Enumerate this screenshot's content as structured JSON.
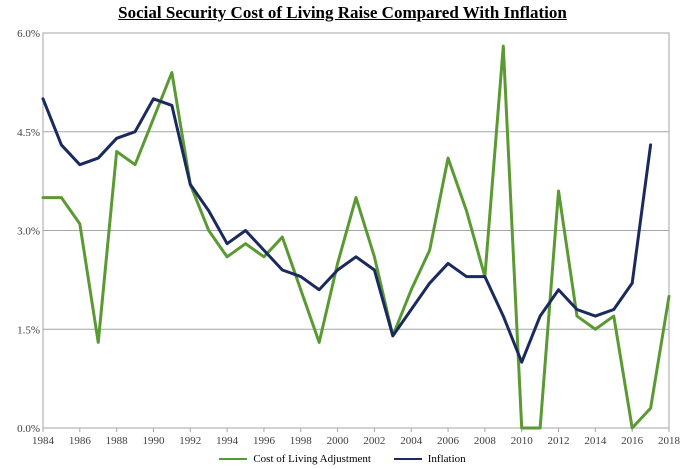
{
  "chart_data": {
    "type": "line",
    "title": "Social Security Cost of Living Raise Compared With Inflation",
    "xlabel": "",
    "ylabel": "",
    "xlim": [
      1984,
      2018
    ],
    "ylim": [
      0,
      6
    ],
    "x_ticks": [
      "1984",
      "1986",
      "1988",
      "1990",
      "1992",
      "1994",
      "1996",
      "1998",
      "2000",
      "2002",
      "2004",
      "2006",
      "2008",
      "2010",
      "2012",
      "2014",
      "2016",
      "2018"
    ],
    "y_ticks": [
      "0.0%",
      "1.5%",
      "3.0%",
      "4.5%",
      "6.0%"
    ],
    "grid": "horizontal",
    "legend_position": "bottom",
    "series": [
      {
        "name": "Cost of Living Adjustment",
        "color": "#5b9a33",
        "x": [
          1984,
          1985,
          1986,
          1987,
          1988,
          1989,
          1990,
          1991,
          1992,
          1993,
          1994,
          1995,
          1996,
          1997,
          1998,
          1999,
          2000,
          2001,
          2002,
          2003,
          2004,
          2005,
          2006,
          2007,
          2008,
          2009,
          2010,
          2011,
          2012,
          2013,
          2014,
          2015,
          2016,
          2017,
          2018
        ],
        "values": [
          3.5,
          3.5,
          3.1,
          1.3,
          4.2,
          4.0,
          4.7,
          5.4,
          3.7,
          3.0,
          2.6,
          2.8,
          2.6,
          2.9,
          2.1,
          1.3,
          2.5,
          3.5,
          2.6,
          1.4,
          2.1,
          2.7,
          4.1,
          3.3,
          2.3,
          5.8,
          0.0,
          0.0,
          3.6,
          1.7,
          1.5,
          1.7,
          0.0,
          0.3,
          2.0
        ]
      },
      {
        "name": "Inflation",
        "color": "#1b2a5e",
        "x": [
          1984,
          1985,
          1986,
          1987,
          1988,
          1989,
          1990,
          1991,
          1992,
          1993,
          1994,
          1995,
          1996,
          1997,
          1998,
          1999,
          2000,
          2001,
          2002,
          2003,
          2004,
          2005,
          2006,
          2007,
          2008,
          2009,
          2010,
          2011,
          2012,
          2013,
          2014,
          2015,
          2016,
          2017
        ],
        "values": [
          5.0,
          4.3,
          4.0,
          4.1,
          4.4,
          4.5,
          5.0,
          4.9,
          3.7,
          3.3,
          2.8,
          3.0,
          2.7,
          2.4,
          2.3,
          2.1,
          2.4,
          2.6,
          2.4,
          1.4,
          1.8,
          2.2,
          2.5,
          2.3,
          2.3,
          1.7,
          1.0,
          1.7,
          2.1,
          1.8,
          1.7,
          1.8,
          2.2,
          4.3
        ]
      }
    ]
  }
}
